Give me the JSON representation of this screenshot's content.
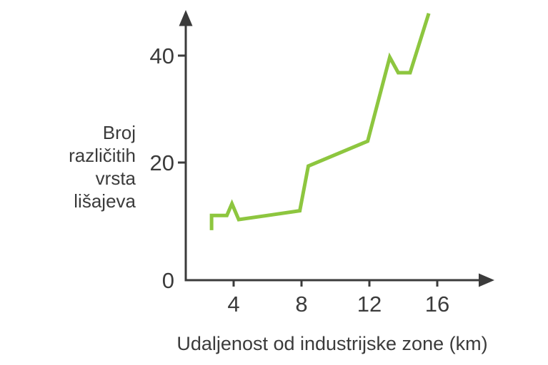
{
  "chart_data": {
    "type": "line",
    "title": "",
    "xlabel": "Udaljenost od industrijske zone (km)",
    "ylabel": "Broj različitih vrsta lišajeva",
    "ylabel_multiline": "Broj\nrazličitih\nvrsta\nlišajeva",
    "xticks": [
      4,
      8,
      12,
      16
    ],
    "yticks": [
      0,
      20,
      40
    ],
    "xlim": [
      1.5,
      18.5
    ],
    "ylim": [
      0,
      50
    ],
    "grid": false,
    "legend": null,
    "series": [
      {
        "name": "broj-vrsta-lisajeva",
        "color": "#8dc63f",
        "points": [
          [
            2.7,
            8.5
          ],
          [
            2.7,
            11
          ],
          [
            3.6,
            11
          ],
          [
            3.9,
            13
          ],
          [
            4.3,
            10.3
          ],
          [
            7.9,
            11.8
          ],
          [
            8.4,
            19.4
          ],
          [
            11.9,
            24
          ],
          [
            13.2,
            39.7
          ],
          [
            13.7,
            36.8
          ],
          [
            14.4,
            36.8
          ],
          [
            15.5,
            47.9
          ]
        ]
      }
    ],
    "colors": {
      "axis": "#3b3b3b",
      "text": "#3b3b3b",
      "line": "#8dc63f"
    }
  }
}
